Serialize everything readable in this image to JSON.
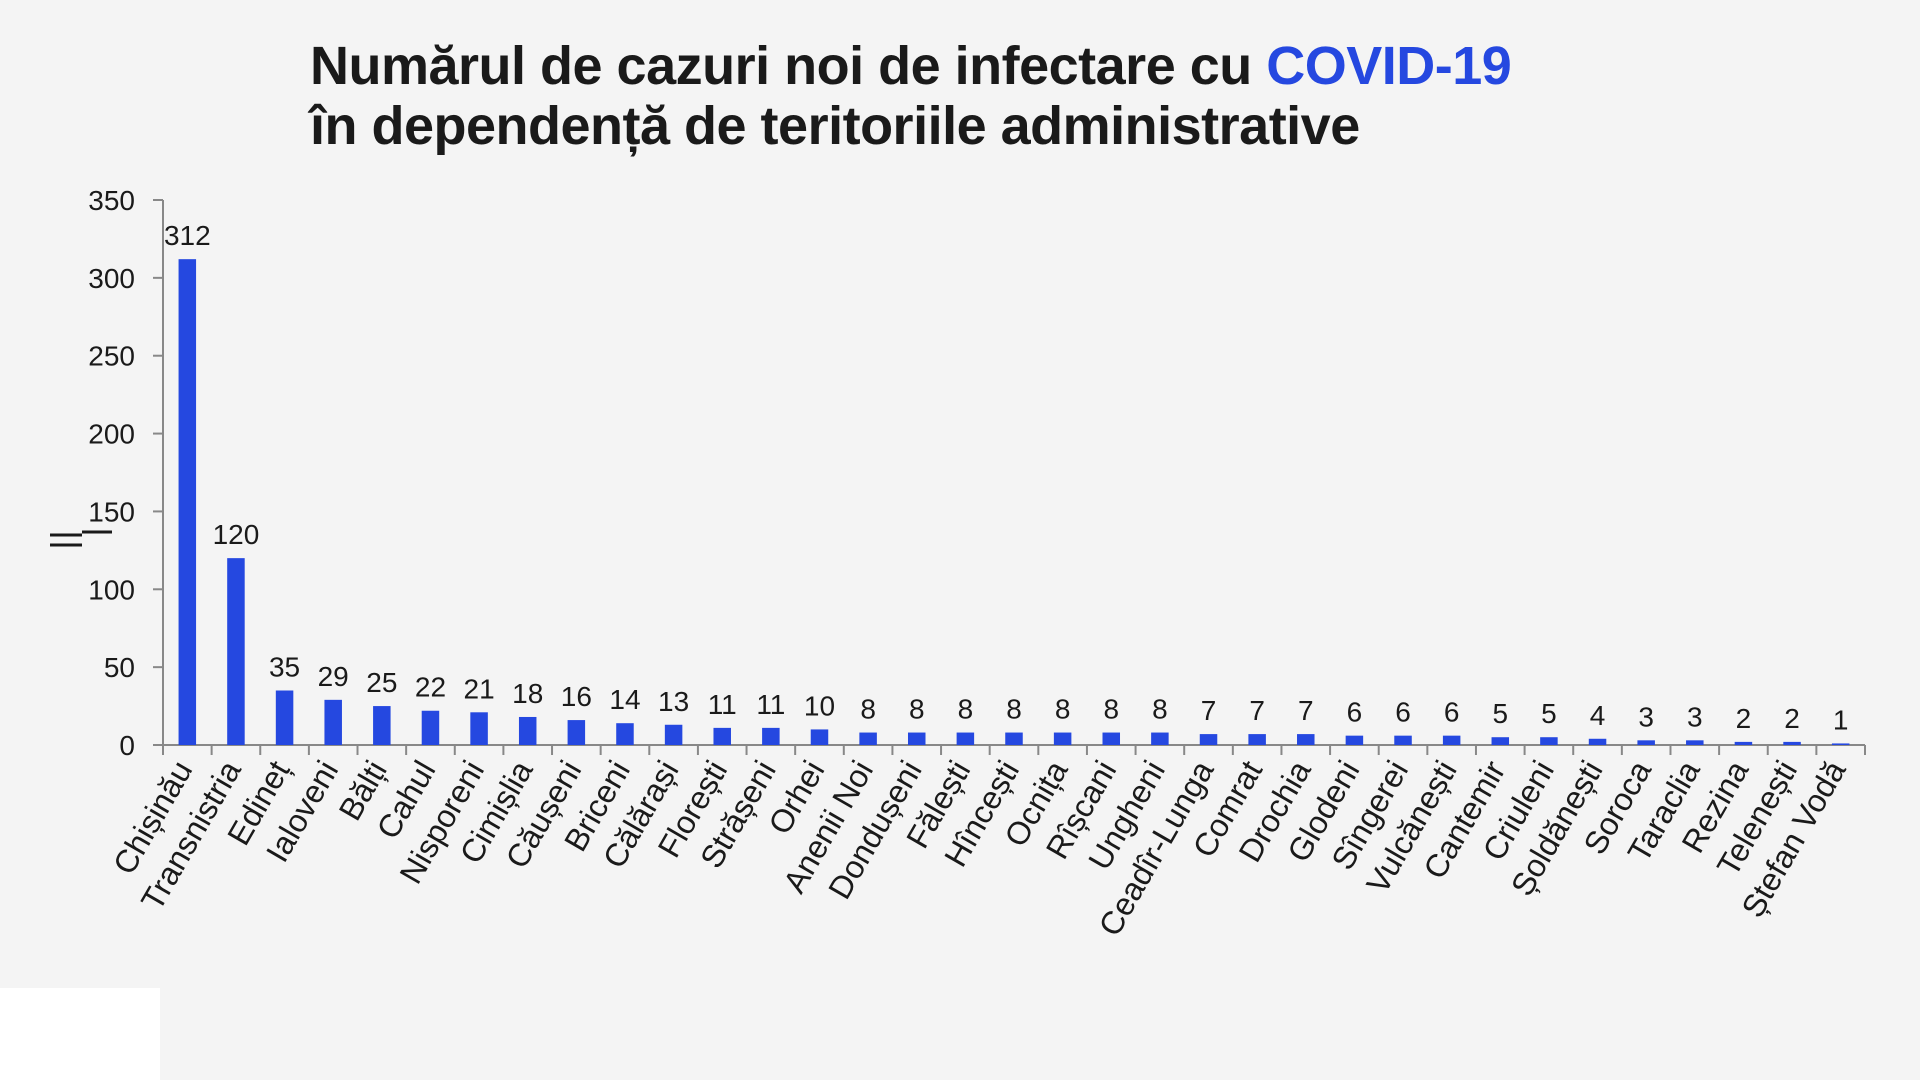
{
  "title": {
    "line1_prefix": "Numărul de cazuri noi de infectare cu ",
    "line1_accent": "COVID-19",
    "line2": "în dependență de teritoriile administrative"
  },
  "colors": {
    "bar": "#2548e0",
    "accent": "#2548e0",
    "text": "#1a1a1a",
    "axis": "#888888",
    "background": "#f4f4f4"
  },
  "chart_data": {
    "type": "bar",
    "title": "Numărul de cazuri noi de infectare cu COVID-19 în dependență de teritoriile administrative",
    "xlabel": "",
    "ylabel": "",
    "ylim": [
      0,
      350
    ],
    "yticks": [
      0,
      50,
      100,
      150,
      200,
      250,
      300,
      350
    ],
    "grid": false,
    "legend": "none",
    "categories": [
      "Chișinău",
      "Transnistria",
      "Edineț",
      "Ialoveni",
      "Bălți",
      "Cahul",
      "Nisporeni",
      "Cimișlia",
      "Căușeni",
      "Briceni",
      "Călărași",
      "Florești",
      "Strășeni",
      "Orhei",
      "Anenii Noi",
      "Dondușeni",
      "Fălești",
      "Hîncești",
      "Ocnița",
      "Rîșcani",
      "Ungheni",
      "Ceadîr-Lunga",
      "Comrat",
      "Drochia",
      "Glodeni",
      "Sîngerei",
      "Vulcănești",
      "Cantemir",
      "Criuleni",
      "Șoldănești",
      "Soroca",
      "Taraclia",
      "Rezina",
      "Telenești",
      "Ștefan Vodă"
    ],
    "values": [
      312,
      120,
      35,
      29,
      25,
      22,
      21,
      18,
      16,
      14,
      13,
      11,
      11,
      10,
      8,
      8,
      8,
      8,
      8,
      8,
      8,
      7,
      7,
      7,
      6,
      6,
      6,
      5,
      5,
      4,
      3,
      3,
      2,
      2,
      1
    ]
  }
}
